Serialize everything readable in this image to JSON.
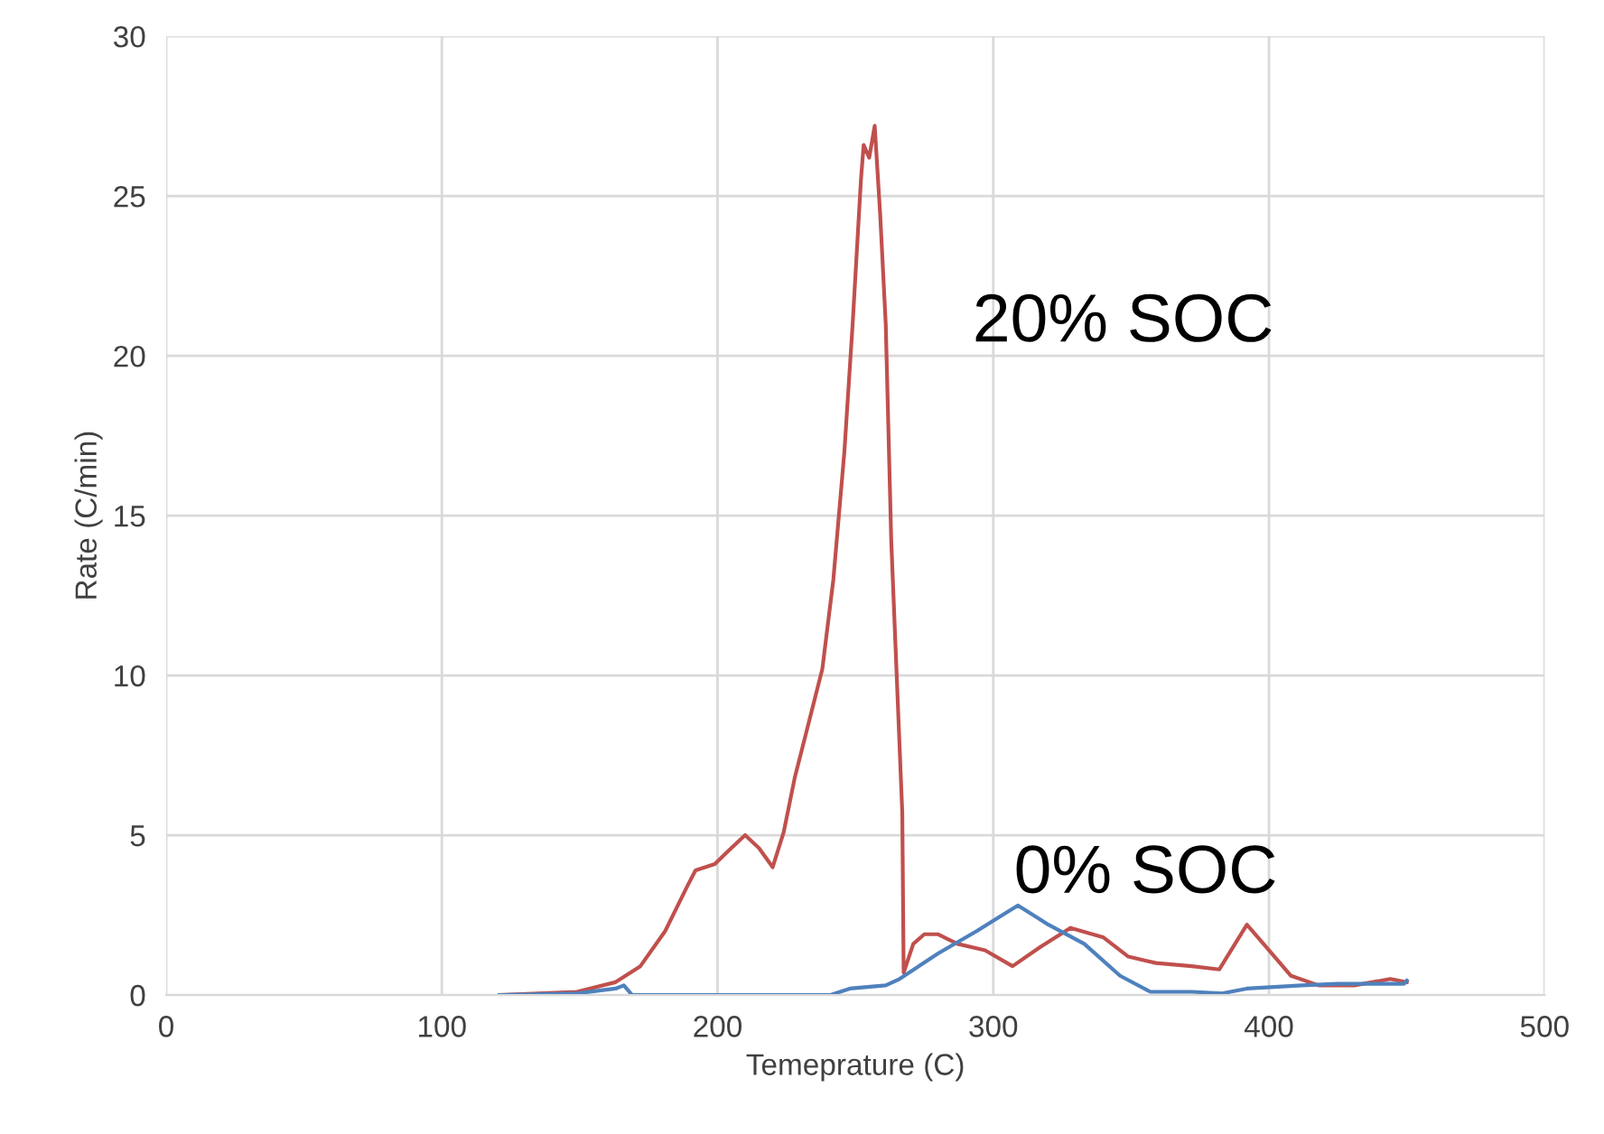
{
  "chart_data": {
    "type": "line",
    "xlabel": "Temeprature (C)",
    "ylabel": "Rate (C/min)",
    "xlim": [
      0,
      500
    ],
    "xticks": [
      0,
      100,
      200,
      300,
      400,
      500
    ],
    "ylim": [
      0,
      30
    ],
    "yticks": [
      0,
      5,
      10,
      15,
      20,
      25,
      30
    ],
    "grid": true,
    "legend": false,
    "marker": "none",
    "line_style": "solid",
    "series": [
      {
        "name": "20% SOC",
        "color": "#c0504d",
        "x": [
          121,
          149,
          163,
          172,
          181,
          189,
          192,
          199,
          205,
          210,
          215,
          220,
          224,
          228,
          233,
          238,
          242,
          246,
          249,
          252,
          253,
          255,
          257,
          259,
          261,
          263,
          267,
          267.5,
          271,
          275,
          280,
          287,
          297,
          307,
          317,
          328,
          340,
          349,
          359,
          372,
          382,
          392,
          399,
          408,
          418,
          431,
          444,
          450
        ],
        "values": [
          0,
          0.1,
          0.4,
          0.9,
          2.0,
          3.4,
          3.9,
          4.1,
          4.6,
          5.0,
          4.6,
          4.0,
          5.1,
          6.8,
          8.5,
          10.2,
          13,
          17,
          21,
          25.5,
          26.6,
          26.2,
          27.2,
          24.4,
          21,
          14.2,
          5.7,
          0.7,
          1.6,
          1.9,
          1.9,
          1.6,
          1.4,
          0.9,
          1.5,
          2.1,
          1.8,
          1.2,
          1.0,
          0.9,
          0.8,
          2.2,
          1.5,
          0.6,
          0.3,
          0.3,
          0.5,
          0.4
        ]
      },
      {
        "name": "0% SOC",
        "color": "#4f81bd",
        "x": [
          121,
          149,
          163,
          166,
          169,
          241,
          248,
          261,
          266,
          280,
          294,
          307,
          309,
          320,
          333,
          346,
          357,
          372,
          383,
          392,
          412,
          425,
          449,
          450
        ],
        "values": [
          0,
          0.05,
          0.2,
          0.3,
          0,
          0,
          0.2,
          0.3,
          0.5,
          1.3,
          2.0,
          2.7,
          2.8,
          2.2,
          1.6,
          0.6,
          0.1,
          0.1,
          0.05,
          0.2,
          0.3,
          0.35,
          0.35,
          0.45
        ]
      }
    ]
  }
}
